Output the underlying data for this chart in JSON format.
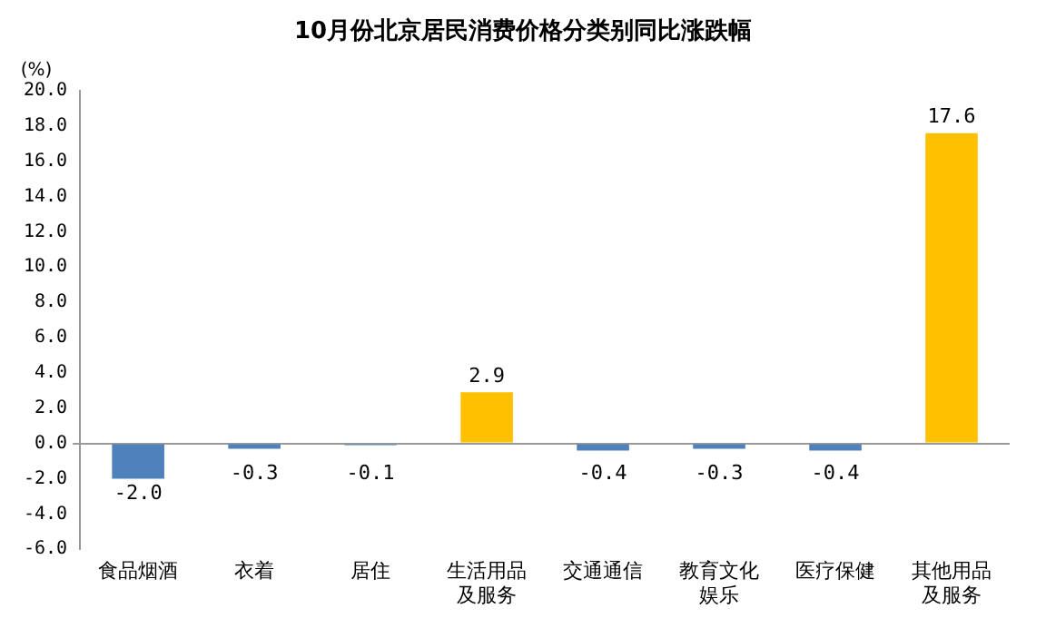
{
  "chart_data": {
    "type": "bar",
    "title": "10月份北京居民消费价格分类别同比涨跌幅",
    "ylabel": "(%)",
    "categories": [
      "食品烟酒",
      "衣着",
      "居住",
      "生活用品及服务",
      "交通通信",
      "教育文化娱乐",
      "医疗保健",
      "其他用品及服务"
    ],
    "values": [
      -2.0,
      -0.3,
      -0.1,
      2.9,
      -0.4,
      -0.3,
      -0.4,
      17.6
    ],
    "colors": [
      "#4f81bd",
      "#4f81bd",
      "#4f81bd",
      "#ffc000",
      "#4f81bd",
      "#4f81bd",
      "#4f81bd",
      "#ffc000"
    ],
    "value_labels": [
      "-2.0",
      "-0.3",
      "-0.1",
      "2.9",
      "-0.4",
      "-0.3",
      "-0.4",
      "17.6"
    ],
    "ylim": [
      -6,
      20
    ],
    "yticks": [
      {
        "value": -6,
        "label": "-6.0"
      },
      {
        "value": -4,
        "label": "-4.0"
      },
      {
        "value": -2,
        "label": "-2.0"
      },
      {
        "value": 0,
        "label": "0.0"
      },
      {
        "value": 2,
        "label": "2.0"
      },
      {
        "value": 4,
        "label": "4.0"
      },
      {
        "value": 6,
        "label": "6.0"
      },
      {
        "value": 8,
        "label": "8.0"
      },
      {
        "value": 10,
        "label": "10.0"
      },
      {
        "value": 12,
        "label": "12.0"
      },
      {
        "value": 14,
        "label": "14.0"
      },
      {
        "value": 16,
        "label": "16.0"
      },
      {
        "value": 18,
        "label": "18.0"
      },
      {
        "value": 20,
        "label": "20.0"
      }
    ],
    "legend": false
  }
}
